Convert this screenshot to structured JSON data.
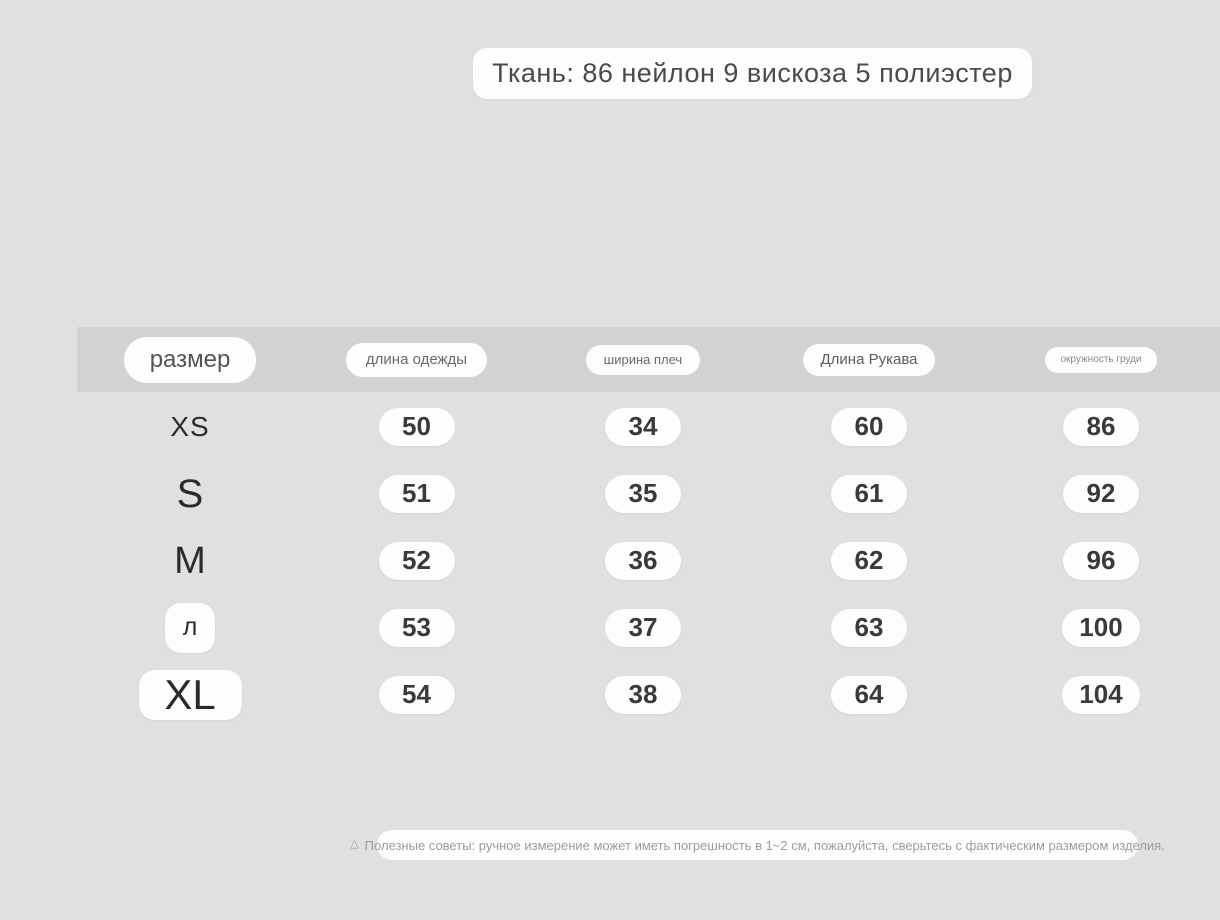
{
  "fabric_label": "Ткань: 86 нейлон 9 вискоза 5 полиэстер",
  "table": {
    "headers": [
      "размер",
      "длина одежды",
      "ширина плеч",
      "Длина Рукава",
      "окружность груди"
    ],
    "rows": [
      {
        "size": "XS",
        "values": [
          "50",
          "34",
          "60",
          "86"
        ]
      },
      {
        "size": "S",
        "values": [
          "51",
          "35",
          "61",
          "92"
        ]
      },
      {
        "size": "M",
        "values": [
          "52",
          "36",
          "62",
          "96"
        ]
      },
      {
        "size": "л",
        "values": [
          "53",
          "37",
          "63",
          "100"
        ]
      },
      {
        "size": "XL",
        "values": [
          "54",
          "38",
          "64",
          "104"
        ]
      }
    ]
  },
  "note": {
    "icon": "△",
    "text": "Полезные советы: ручное измерение может иметь погрешность в 1~2 см, пожалуйста, сверьтесь с фактическим размером изделия."
  },
  "colors": {
    "page_bg": "#e0e0e0",
    "header_band_bg": "#d2d2d2",
    "pill_bg": "#fdfdfd",
    "value_text": "#3a3a3a",
    "note_text": "#9c9c9c"
  },
  "chart_data": {
    "type": "table",
    "columns": [
      "размер",
      "длина одежды",
      "ширина плеч",
      "Длина Рукава",
      "окружность груди"
    ],
    "rows": [
      [
        "XS",
        50,
        34,
        60,
        86
      ],
      [
        "S",
        51,
        35,
        61,
        92
      ],
      [
        "M",
        52,
        36,
        62,
        96
      ],
      [
        "л",
        53,
        37,
        63,
        100
      ],
      [
        "XL",
        54,
        38,
        64,
        104
      ]
    ]
  }
}
